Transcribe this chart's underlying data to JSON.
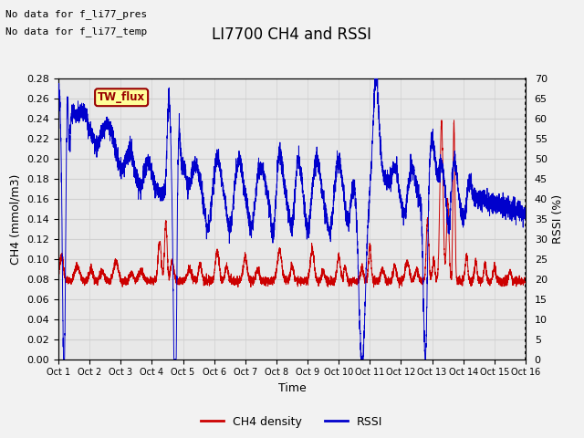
{
  "title": "LI7700 CH4 and RSSI",
  "xlabel": "Time",
  "ylabel_left": "CH4 (mmol/m3)",
  "ylabel_right": "RSSI (%)",
  "annotation1": "No data for f_li77_pres",
  "annotation2": "No data for f_li77_temp",
  "legend_label1": "TW_flux",
  "legend_label2": "CH4 density",
  "legend_label3": "RSSI",
  "ch4_color": "#cc0000",
  "rssi_color": "#0000cc",
  "twflux_box_color": "#ffff99",
  "twflux_text_color": "#990000",
  "twflux_border_color": "#990000",
  "xlim": [
    0,
    15
  ],
  "ylim_left": [
    0.0,
    0.28
  ],
  "ylim_right": [
    0,
    70
  ],
  "yticks_left": [
    0.0,
    0.02,
    0.04,
    0.06,
    0.08,
    0.1,
    0.12,
    0.14,
    0.16,
    0.18,
    0.2,
    0.22,
    0.24,
    0.26,
    0.28
  ],
  "yticks_right": [
    0,
    5,
    10,
    15,
    20,
    25,
    30,
    35,
    40,
    45,
    50,
    55,
    60,
    65,
    70
  ],
  "xtick_labels": [
    "Oct 1",
    "Oct 2",
    "Oct 3",
    "Oct 4",
    "Oct 5",
    "Oct 6",
    "Oct 7",
    "Oct 8",
    "Oct 9",
    "Oct 10",
    "Oct 11",
    "Oct 12",
    "Oct 13",
    "Oct 14",
    "Oct 15",
    "Oct 16"
  ],
  "grid_color": "#d0d0d0",
  "bg_color": "#e8e8e8",
  "title_fontsize": 12,
  "axis_fontsize": 9,
  "tick_fontsize": 8,
  "annotation_fontsize": 8
}
